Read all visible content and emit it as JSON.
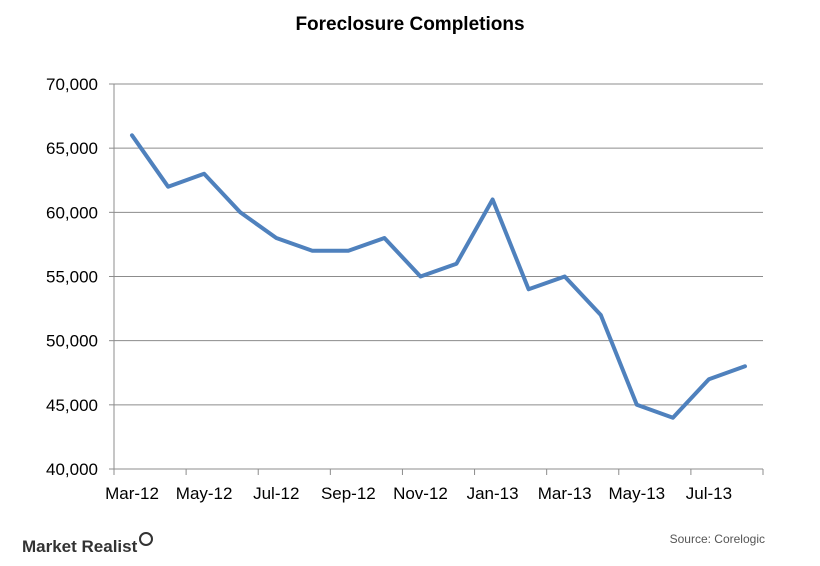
{
  "chart_data": {
    "type": "line",
    "title": "Foreclosure Completions",
    "xlabel": "",
    "ylabel": "",
    "ylim": [
      40000,
      70000
    ],
    "y_ticks": [
      "40,000",
      "45,000",
      "50,000",
      "55,000",
      "60,000",
      "65,000",
      "70,000"
    ],
    "y_tick_values": [
      40000,
      45000,
      50000,
      55000,
      60000,
      65000,
      70000
    ],
    "x_tick_labels": [
      "Mar-12",
      "May-12",
      "Jul-12",
      "Sep-12",
      "Nov-12",
      "Jan-13",
      "Mar-13",
      "May-13",
      "Jul-13"
    ],
    "categories": [
      "Mar-12",
      "Apr-12",
      "May-12",
      "Jun-12",
      "Jul-12",
      "Aug-12",
      "Sep-12",
      "Oct-12",
      "Nov-12",
      "Dec-12",
      "Jan-13",
      "Feb-13",
      "Mar-13",
      "Apr-13",
      "May-13",
      "Jun-13",
      "Jul-13",
      "Aug-13"
    ],
    "series": [
      {
        "values": [
          66000,
          62000,
          63000,
          60000,
          58000,
          57000,
          57000,
          58000,
          55000,
          56000,
          61000,
          54000,
          55000,
          52000,
          45000,
          44000,
          47000,
          48000
        ]
      }
    ],
    "grid": "horizontal",
    "line_color": "#4F81BD",
    "grid_color": "#8C8C8C"
  },
  "footer": {
    "brand": "Market Realist",
    "source": "Source: Corelogic"
  }
}
